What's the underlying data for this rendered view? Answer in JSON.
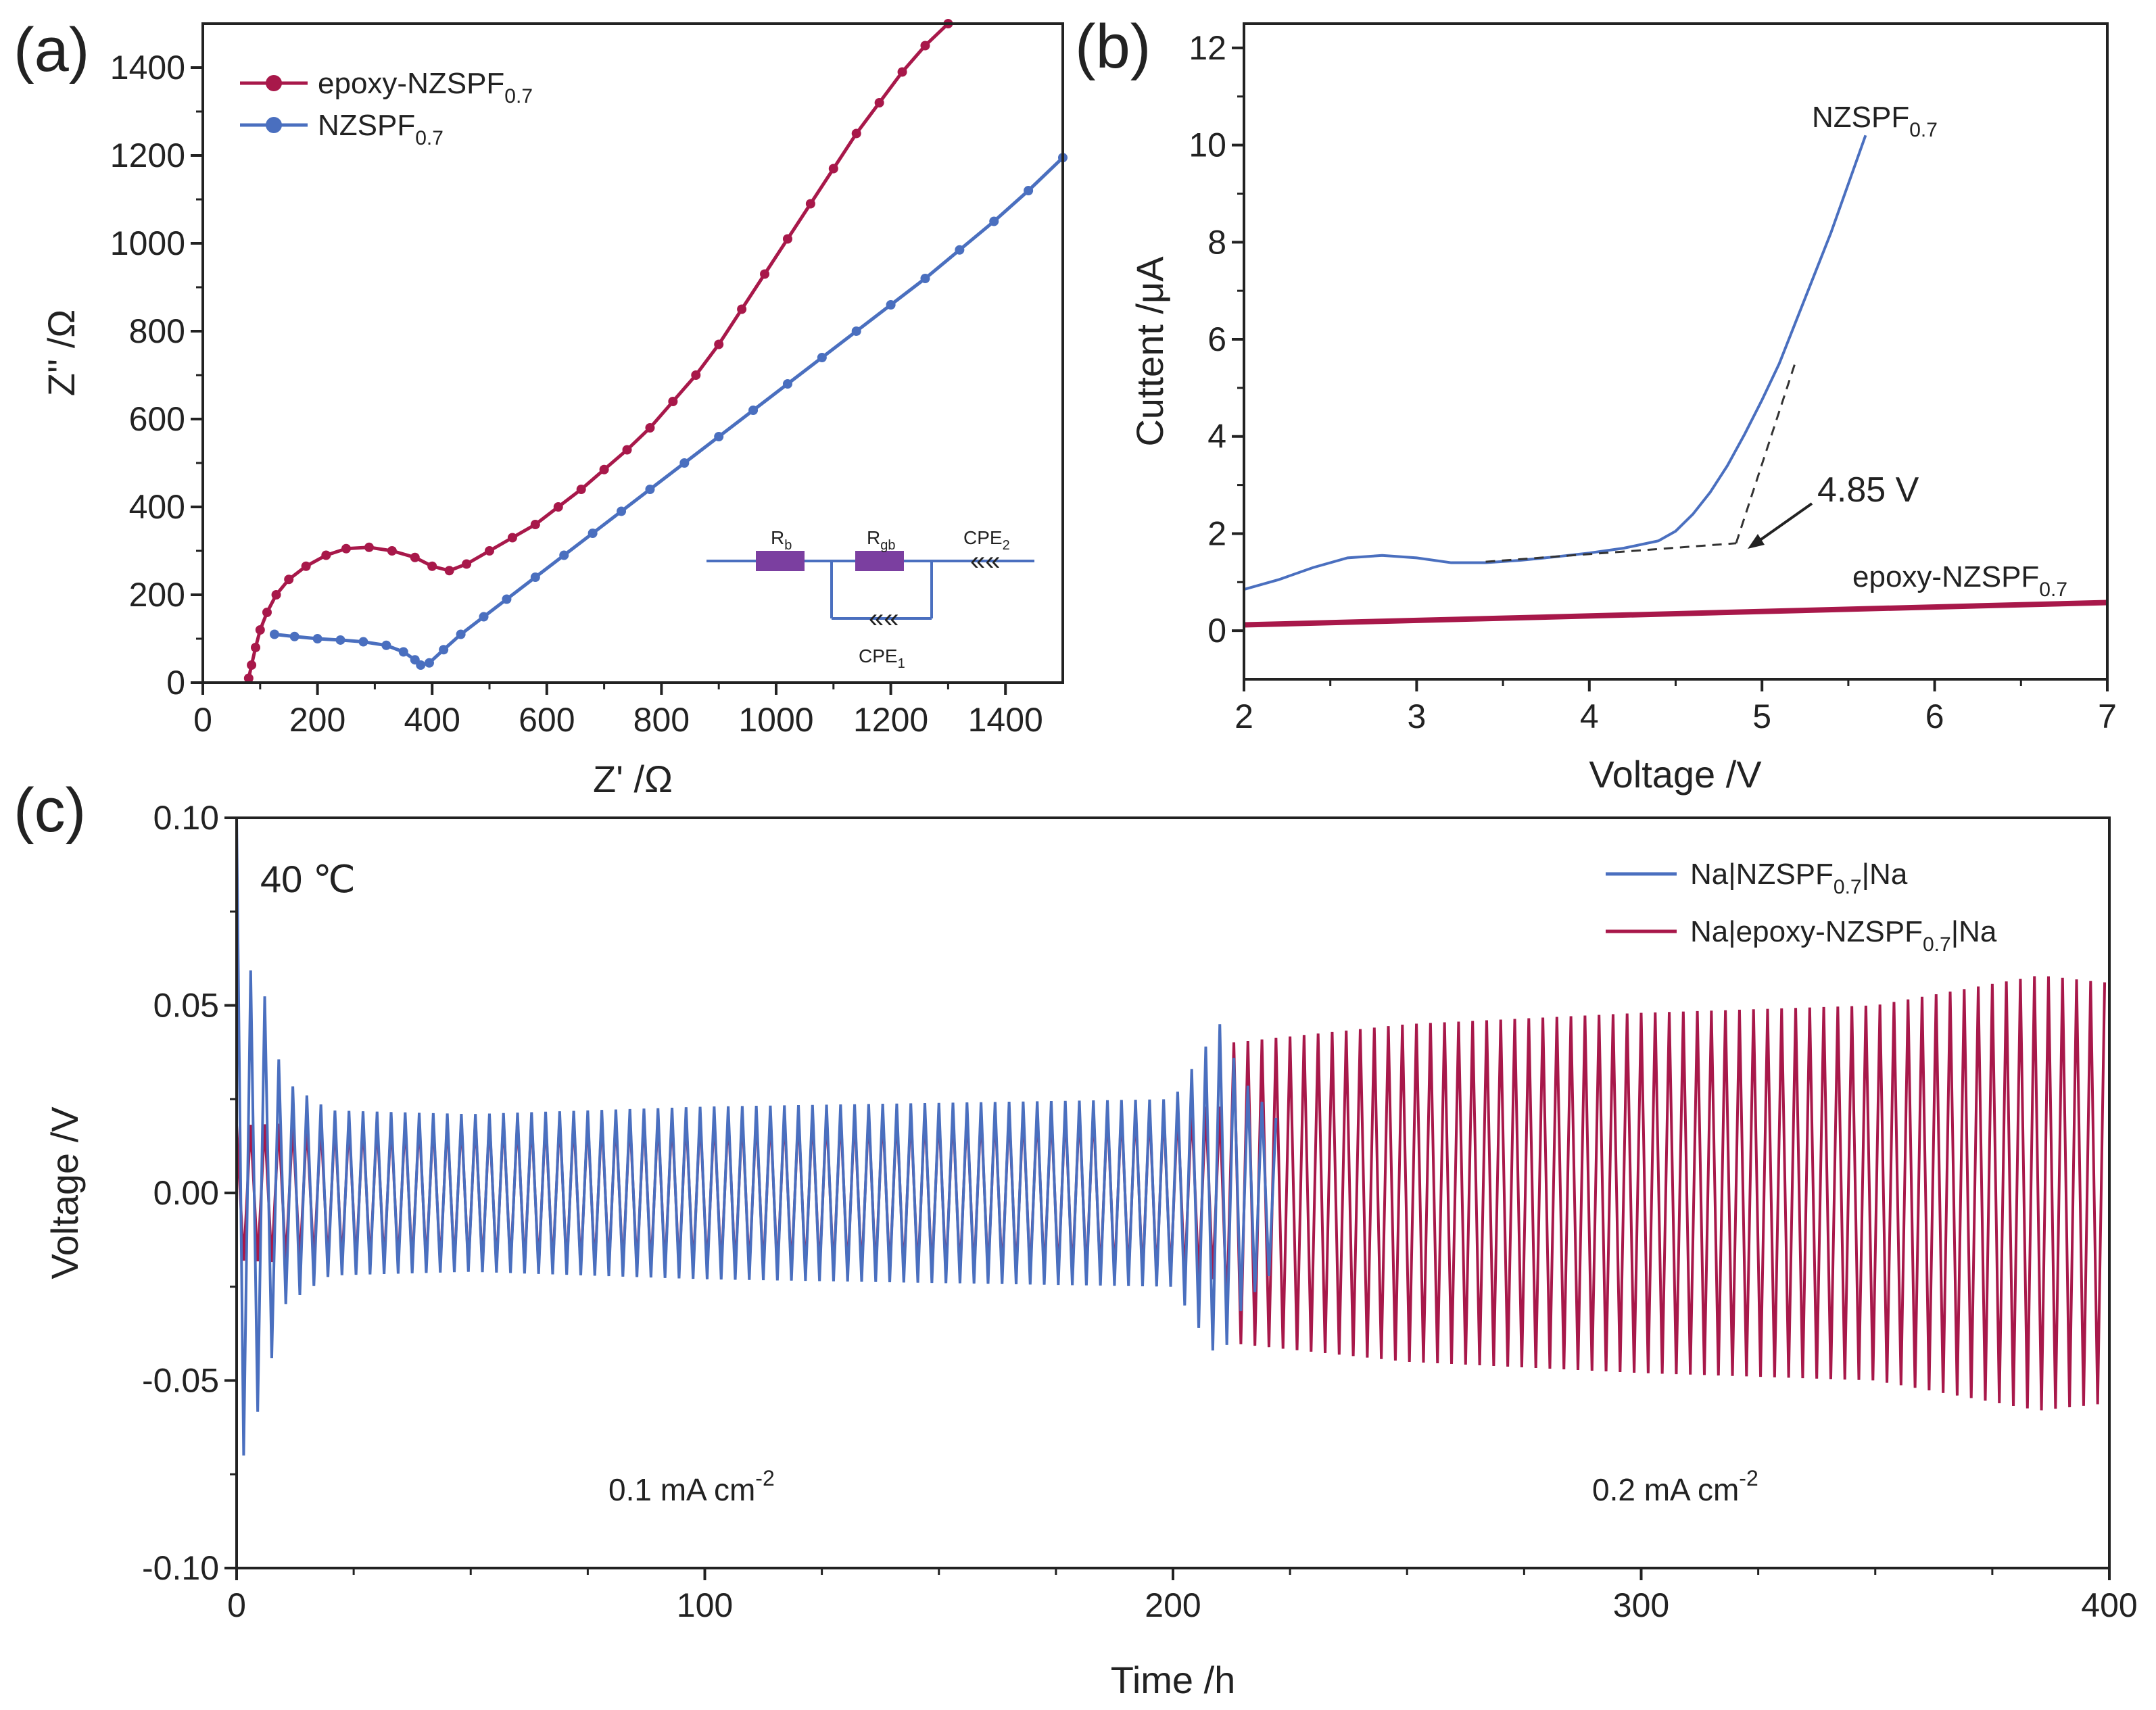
{
  "colors": {
    "red": "#A8184A",
    "blue": "#4A6FBF",
    "axis": "#222222",
    "dash": "#333333",
    "purple": "#7B3FA0"
  },
  "chart_data": [
    {
      "panel": "(a)",
      "type": "line",
      "xlabel": "Z' /Ω",
      "ylabel": "Z'' /Ω",
      "xlim": [
        0,
        1500
      ],
      "ylim": [
        0,
        1500
      ],
      "xticks": [
        0,
        200,
        400,
        600,
        800,
        1000,
        1200,
        1400
      ],
      "yticks": [
        0,
        200,
        400,
        600,
        800,
        1000,
        1200,
        1400
      ],
      "legend_position": "top-left",
      "series": [
        {
          "name": "epoxy-NZSPF",
          "sub": "0.7",
          "color": "#A8184A",
          "x": [
            80,
            85,
            92,
            100,
            112,
            128,
            150,
            180,
            215,
            250,
            290,
            330,
            370,
            400,
            430,
            460,
            500,
            540,
            580,
            620,
            660,
            700,
            740,
            780,
            820,
            860,
            900,
            940,
            980,
            1020,
            1060,
            1100,
            1140,
            1180,
            1220,
            1260,
            1300
          ],
          "y": [
            10,
            40,
            80,
            120,
            160,
            200,
            235,
            265,
            290,
            305,
            308,
            300,
            285,
            265,
            255,
            270,
            300,
            330,
            360,
            400,
            440,
            485,
            530,
            580,
            640,
            700,
            770,
            850,
            930,
            1010,
            1090,
            1170,
            1250,
            1320,
            1390,
            1450,
            1500
          ]
        },
        {
          "name": "NZSPF",
          "sub": "0.7",
          "color": "#4A6FBF",
          "x": [
            125,
            160,
            200,
            240,
            280,
            320,
            350,
            370,
            380,
            395,
            420,
            450,
            490,
            530,
            580,
            630,
            680,
            730,
            780,
            840,
            900,
            960,
            1020,
            1080,
            1140,
            1200,
            1260,
            1320,
            1380,
            1440,
            1500
          ],
          "y": [
            110,
            105,
            100,
            97,
            93,
            85,
            70,
            52,
            40,
            45,
            75,
            110,
            150,
            190,
            240,
            290,
            340,
            390,
            440,
            500,
            560,
            620,
            680,
            740,
            800,
            860,
            920,
            985,
            1050,
            1120,
            1195
          ]
        }
      ],
      "inset": {
        "labels": [
          "R",
          "R",
          "CPE",
          "CPE"
        ],
        "subs": [
          "b",
          "gb",
          "2",
          "1"
        ]
      }
    },
    {
      "panel": "(b)",
      "type": "line",
      "xlabel": "Voltage /V",
      "ylabel": "Cuttent /μA",
      "xlim": [
        2,
        7
      ],
      "ylim": [
        -1,
        12.5
      ],
      "xticks": [
        2,
        3,
        4,
        5,
        6,
        7
      ],
      "yticks": [
        0,
        2,
        4,
        6,
        8,
        10,
        12
      ],
      "series": [
        {
          "name": "NZSPF",
          "sub": "0.7",
          "color": "#4A6FBF",
          "x": [
            2.0,
            2.2,
            2.4,
            2.6,
            2.8,
            3.0,
            3.2,
            3.4,
            3.6,
            3.8,
            4.0,
            4.2,
            4.4,
            4.5,
            4.6,
            4.7,
            4.8,
            4.9,
            5.0,
            5.1,
            5.2,
            5.3,
            5.4,
            5.5,
            5.6
          ],
          "y": [
            0.85,
            1.05,
            1.3,
            1.5,
            1.55,
            1.5,
            1.4,
            1.4,
            1.45,
            1.52,
            1.6,
            1.7,
            1.85,
            2.05,
            2.4,
            2.85,
            3.4,
            4.05,
            4.75,
            5.5,
            6.4,
            7.3,
            8.2,
            9.2,
            10.2
          ]
        },
        {
          "name": "epoxy-NZSPF",
          "sub": "0.7",
          "color": "#A8184A",
          "x": [
            2.0,
            7.0
          ],
          "y": [
            0.12,
            0.58
          ]
        }
      ],
      "tangent_lines": [
        {
          "x": [
            3.4,
            4.85
          ],
          "y": [
            1.42,
            1.8
          ]
        },
        {
          "x": [
            4.85,
            5.2
          ],
          "y": [
            1.8,
            5.6
          ]
        }
      ],
      "annotation": "4.85 V"
    },
    {
      "panel": "(c)",
      "type": "line",
      "xlabel": "Time /h",
      "ylabel": "Voltage /V",
      "xlim": [
        0,
        400
      ],
      "ylim": [
        -0.1,
        0.1
      ],
      "xticks": [
        0,
        100,
        200,
        300,
        400
      ],
      "yticks": [
        -0.1,
        -0.05,
        0.0,
        0.05,
        0.1
      ],
      "ytick_labels": [
        "-0.10",
        "-0.05",
        "0.00",
        "0.05",
        "0.10"
      ],
      "legend_position": "top-right",
      "series": [
        {
          "name": "Na|NZSPF",
          "sub": "0.7",
          "suffix": "|Na",
          "color": "#4A6FBF",
          "envelope_t": [
            0,
            2,
            5,
            10,
            20,
            50,
            100,
            150,
            200,
            210,
            215,
            222
          ],
          "envelope_amp": [
            0.1,
            0.06,
            0.058,
            0.03,
            0.022,
            0.021,
            0.023,
            0.024,
            0.025,
            0.045,
            0.03,
            0.02
          ]
        },
        {
          "name": "Na|epoxy-NZSPF",
          "sub": "0.7",
          "suffix": "|Na",
          "color": "#A8184A",
          "envelope_t": [
            0,
            20,
            100,
            200,
            211,
            212,
            250,
            300,
            350,
            385,
            400
          ],
          "envelope_amp": [
            0.018,
            0.019,
            0.021,
            0.023,
            0.023,
            0.04,
            0.045,
            0.048,
            0.05,
            0.058,
            0.056
          ]
        }
      ],
      "annotations": [
        "40 ℃",
        "0.1 mA cm",
        "0.2 mA cm"
      ],
      "annotation_sup": "-2"
    }
  ],
  "labels": {
    "panel_a": "(a)",
    "panel_b": "(b)",
    "panel_c": "(c)",
    "a_leg1": "epoxy-NZSPF",
    "a_leg2": "NZSPF",
    "sub07": "0.7",
    "b_lab_nzspf": "NZSPF",
    "b_lab_epoxy": "epoxy-NZSPF",
    "b_anno": "4.85 V",
    "c_leg1": "Na|NZSPF",
    "c_leg2": "Na|epoxy-NZSPF",
    "c_suffix": "|Na",
    "c_temp": "40 ℃",
    "c_rate1": "0.1 mA cm",
    "c_rate2": "0.2 mA cm",
    "sup_m2": "-2",
    "inset_R": "R",
    "inset_b": "b",
    "inset_gb": "gb",
    "inset_CPE": "CPE",
    "inset_2": "2",
    "inset_1": "1"
  }
}
